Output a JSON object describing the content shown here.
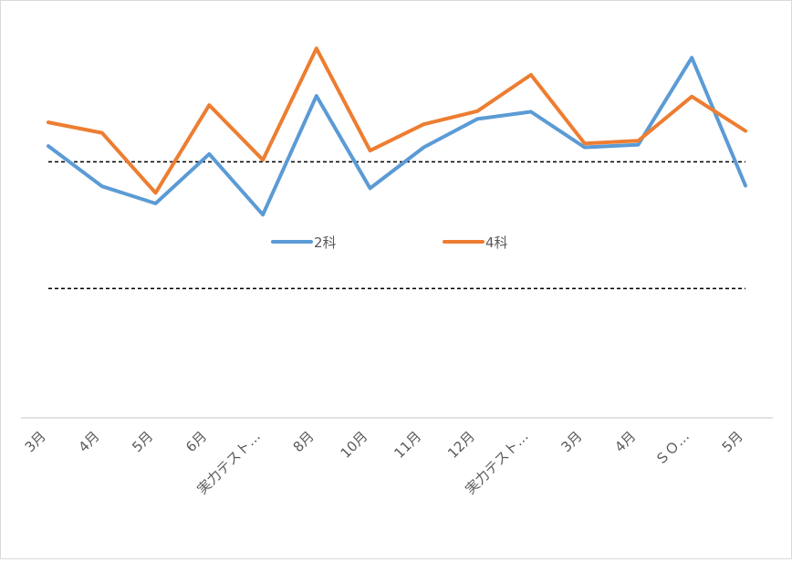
{
  "chart_data": {
    "type": "line",
    "categories": [
      "3月",
      "4月",
      "5月",
      "6月",
      "実力テスト…",
      "8月",
      "10月",
      "11月",
      "12月",
      "実力テスト…",
      "3月",
      "4月",
      "ＳＯ…",
      "5月"
    ],
    "series": [
      {
        "name": "2科",
        "color": "#5b9bd5",
        "values": [
          50.0,
          43.9,
          41.3,
          48.8,
          39.6,
          57.6,
          43.6,
          49.8,
          54.1,
          55.2,
          49.8,
          50.2,
          63.4,
          44.0
        ]
      },
      {
        "name": "4科",
        "color": "#ed7d31",
        "values": [
          53.6,
          52.0,
          42.9,
          56.2,
          47.9,
          64.8,
          49.3,
          53.3,
          55.3,
          60.8,
          50.4,
          50.8,
          57.5,
          52.3
        ]
      }
    ],
    "reference_lines": [
      47.6,
      28.4
    ],
    "ylim": [
      8.8,
      72.0
    ],
    "legend": "center",
    "grid": false,
    "xlabel": "",
    "ylabel": ""
  }
}
